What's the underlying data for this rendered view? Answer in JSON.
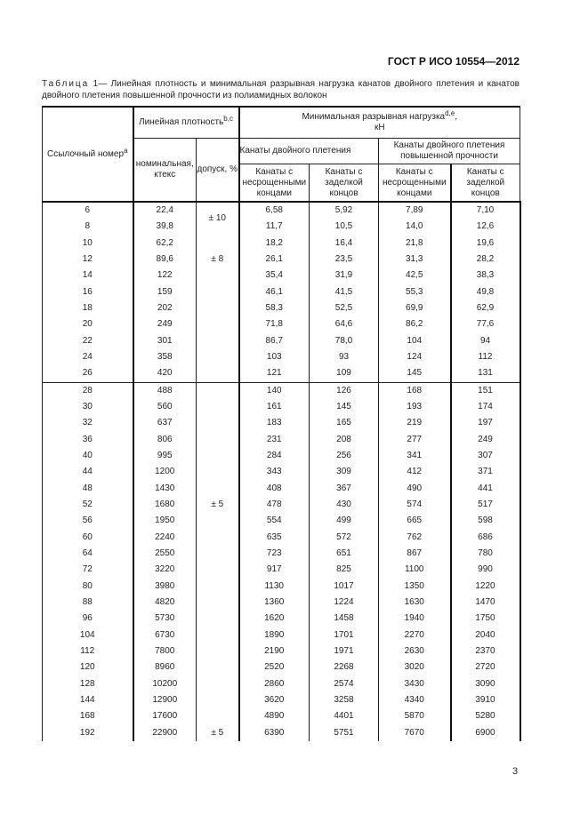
{
  "header": {
    "doc_code": "ГОСТ Р ИСО 10554—2012"
  },
  "caption": {
    "label": "Таблица",
    "number": "1",
    "text": "— Линейная плотность и минимальная разрывная нагрузка канатов двойного плетения и канатов двойного плетения повышенной прочности из полиамидных волокон"
  },
  "table": {
    "headers": {
      "ref_number": "Ссылочный номер",
      "ref_number_sup": "a",
      "linear_density": "Линейная плотность",
      "linear_density_sup": "b,c",
      "min_breaking_load": "Минимальная разрывная нагрузка",
      "min_breaking_load_sup": "d,e",
      "min_breaking_load_unit": "кН",
      "nominal": "номинальная, ктекс",
      "tolerance": "допуск, %",
      "double_braid": "Канаты двойного плетения",
      "double_braid_hs": "Канаты двойного плетения повышенной прочности",
      "unspliced": "Канаты с несрощенными концами",
      "terminated": "Канаты с заделкой концов"
    },
    "blocks": [
      {
        "tolerance_labels": [
          "± 10",
          "± 8"
        ],
        "rows": [
          [
            "6",
            "22,4",
            "6,58",
            "5,92",
            "7,89",
            "7,10"
          ],
          [
            "8",
            "39,8",
            "11,7",
            "10,5",
            "14,0",
            "12,6"
          ],
          [
            "10",
            "62,2",
            "18,2",
            "16,4",
            "21,8",
            "19,6"
          ],
          [
            "12",
            "89,6",
            "26,1",
            "23,5",
            "31,3",
            "28,2"
          ],
          [
            "14",
            "122",
            "35,4",
            "31,9",
            "42,5",
            "38,3"
          ],
          [
            "16",
            "159",
            "46,1",
            "41,5",
            "55,3",
            "49,8"
          ],
          [
            "18",
            "202",
            "58,3",
            "52,5",
            "69,9",
            "62,9"
          ],
          [
            "20",
            "249",
            "71,8",
            "64,6",
            "86,2",
            "77,6"
          ],
          [
            "22",
            "301",
            "86,7",
            "78,0",
            "104",
            "94"
          ],
          [
            "24",
            "358",
            "103",
            "93",
            "124",
            "112"
          ],
          [
            "26",
            "420",
            "121",
            "109",
            "145",
            "131"
          ]
        ]
      },
      {
        "tolerance_labels": [
          "± 5",
          "± 5"
        ],
        "rows": [
          [
            "28",
            "488",
            "140",
            "126",
            "168",
            "151"
          ],
          [
            "30",
            "560",
            "161",
            "145",
            "193",
            "174"
          ],
          [
            "32",
            "637",
            "183",
            "165",
            "219",
            "197"
          ],
          [
            "36",
            "806",
            "231",
            "208",
            "277",
            "249"
          ],
          [
            "40",
            "995",
            "284",
            "256",
            "341",
            "307"
          ],
          [
            "44",
            "1200",
            "343",
            "309",
            "412",
            "371"
          ],
          [
            "48",
            "1430",
            "408",
            "367",
            "490",
            "441"
          ],
          [
            "52",
            "1680",
            "478",
            "430",
            "574",
            "517"
          ],
          [
            "56",
            "1950",
            "554",
            "499",
            "665",
            "598"
          ],
          [
            "60",
            "2240",
            "635",
            "572",
            "762",
            "686"
          ],
          [
            "64",
            "2550",
            "723",
            "651",
            "867",
            "780"
          ],
          [
            "72",
            "3220",
            "917",
            "825",
            "1100",
            "990"
          ],
          [
            "80",
            "3980",
            "1130",
            "1017",
            "1350",
            "1220"
          ],
          [
            "88",
            "4820",
            "1360",
            "1224",
            "1630",
            "1470"
          ],
          [
            "96",
            "5730",
            "1620",
            "1458",
            "1940",
            "1750"
          ],
          [
            "104",
            "6730",
            "1890",
            "1701",
            "2270",
            "2040"
          ],
          [
            "112",
            "7800",
            "2190",
            "1971",
            "2630",
            "2370"
          ],
          [
            "120",
            "8960",
            "2520",
            "2268",
            "3020",
            "2720"
          ],
          [
            "128",
            "10200",
            "2860",
            "2574",
            "3430",
            "3090"
          ],
          [
            "144",
            "12900",
            "3620",
            "3258",
            "4340",
            "3910"
          ],
          [
            "168",
            "17600",
            "4890",
            "4401",
            "5870",
            "5280"
          ],
          [
            "192",
            "22900",
            "6390",
            "5751",
            "7670",
            "6900"
          ]
        ]
      }
    ]
  },
  "footer": {
    "page_number": "3"
  }
}
